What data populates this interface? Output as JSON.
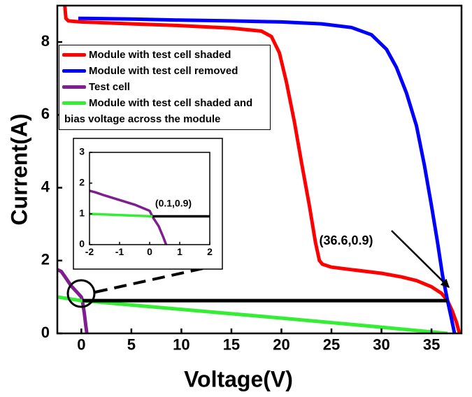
{
  "chart_data": [
    {
      "type": "line",
      "x_label": "Voltage(V)",
      "y_label": "Current(A)",
      "xlim": [
        -2.4,
        38
      ],
      "ylim": [
        0,
        9
      ],
      "xticks": [
        0,
        5,
        10,
        15,
        20,
        25,
        30,
        35
      ],
      "yticks": [
        0,
        2,
        4,
        6,
        8
      ],
      "series": [
        {
          "name": "Module with test cell shaded",
          "color": "#ff0000",
          "x": [
            -1.65,
            -1.55,
            -1.3,
            0,
            5,
            10,
            15,
            18,
            19,
            19.8,
            20.5,
            21.3,
            22,
            22.8,
            23.4,
            23.8,
            24.1,
            25,
            27,
            30,
            32,
            33.5,
            35,
            36,
            36.6,
            37.1,
            37.5,
            37.8
          ],
          "values": [
            9.0,
            8.65,
            8.58,
            8.55,
            8.5,
            8.45,
            8.38,
            8.3,
            8.15,
            7.7,
            6.9,
            5.8,
            4.7,
            3.5,
            2.5,
            2.0,
            1.9,
            1.82,
            1.75,
            1.65,
            1.55,
            1.45,
            1.28,
            1.1,
            0.9,
            0.6,
            0.3,
            0.0
          ]
        },
        {
          "name": "Module with test cell removed",
          "color": "#0000ff",
          "x": [
            -0.3,
            5,
            10,
            15,
            20,
            24,
            27,
            29,
            30.5,
            31.5,
            32.5,
            33.5,
            34.3,
            35,
            35.6,
            36.1,
            36.6,
            37,
            37.3
          ],
          "values": [
            8.65,
            8.63,
            8.6,
            8.58,
            8.55,
            8.5,
            8.4,
            8.2,
            7.8,
            7.3,
            6.6,
            5.7,
            4.6,
            3.5,
            2.5,
            1.6,
            0.9,
            0.4,
            0.0
          ]
        },
        {
          "name": "Test cell",
          "color": "#7f1f8f",
          "x": [
            -2.4,
            -2,
            -1.5,
            -1,
            -0.5,
            0,
            0.1,
            0.3,
            0.45,
            0.55
          ],
          "values": [
            1.75,
            1.7,
            1.5,
            1.3,
            1.15,
            1.0,
            0.9,
            0.55,
            0.2,
            0.0
          ]
        },
        {
          "name": "Module with test cell shaded and bias voltage across the module",
          "color": "#33ee33",
          "x": [
            -2.4,
            0,
            10,
            20,
            30,
            36.6
          ],
          "values": [
            1.0,
            0.9,
            0.66,
            0.42,
            0.17,
            0.0
          ]
        },
        {
          "color": "#000000",
          "x": [
            0.1,
            36.6
          ],
          "values": [
            0.9,
            0.9
          ]
        }
      ],
      "annotation": "(36.6,0.9)"
    },
    {
      "type": "line",
      "xlim": [
        -2,
        2
      ],
      "ylim": [
        0,
        3
      ],
      "xticks": [
        -2,
        -1,
        0,
        1,
        2
      ],
      "yticks": [
        0,
        1,
        2,
        3
      ],
      "series": [
        {
          "color": "#7f1f8f",
          "x": [
            -2,
            -1.8,
            -1.5,
            -1,
            -0.5,
            0,
            0.1,
            0.3,
            0.45,
            0.55
          ],
          "values": [
            1.75,
            1.7,
            1.6,
            1.45,
            1.3,
            1.1,
            0.9,
            0.6,
            0.25,
            0.0
          ]
        },
        {
          "color": "#33ee33",
          "x": [
            -2,
            0.1
          ],
          "values": [
            1.0,
            0.92
          ]
        },
        {
          "color": "#000000",
          "x": [
            0.1,
            2
          ],
          "values": [
            0.92,
            0.92
          ]
        }
      ],
      "annotation": "(0.1,0.9)"
    }
  ]
}
